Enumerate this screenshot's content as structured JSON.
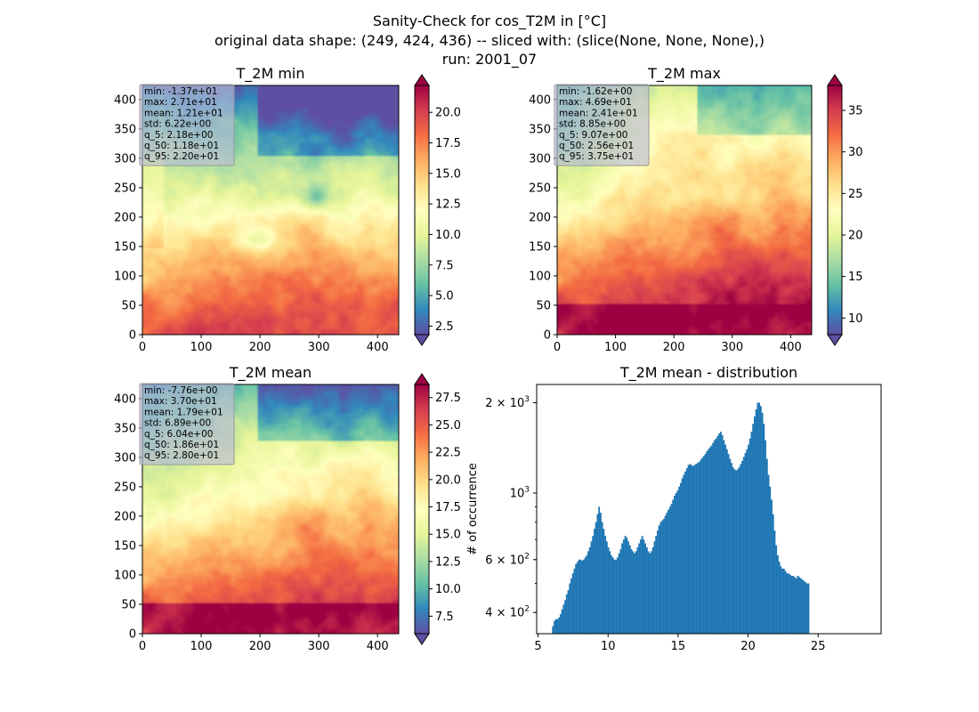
{
  "figure": {
    "suptitle_lines": [
      "Sanity-Check for cos_T2M in [°C]",
      "original data shape: (249, 424, 436) -- sliced with: (slice(None, None, None),)",
      "run: 2001_07"
    ]
  },
  "chart_data": [
    {
      "type": "heatmap",
      "title": "T_2M min",
      "x_ticks": [
        0,
        100,
        200,
        300,
        400
      ],
      "y_ticks": [
        0,
        50,
        100,
        150,
        200,
        250,
        300,
        350,
        400
      ],
      "xlim": [
        0,
        436
      ],
      "ylim": [
        0,
        424
      ],
      "colormap": "Spectral_r",
      "colorbar": {
        "ticks": [
          "2.5",
          "5.0",
          "7.5",
          "10.0",
          "12.5",
          "15.0",
          "17.5",
          "20.0"
        ],
        "range": [
          1.8,
          22.2
        ],
        "extend": "both"
      },
      "stats": [
        "min: -1.37e+01",
        "max: 2.71e+01",
        "mean: 1.21e+01",
        "std: 6.22e+00",
        "q_5: 2.18e+00",
        "q_50: 1.18e+01",
        "q_95: 2.20e+01"
      ]
    },
    {
      "type": "heatmap",
      "title": "T_2M max",
      "x_ticks": [
        0,
        100,
        200,
        300,
        400
      ],
      "y_ticks": [
        0,
        50,
        100,
        150,
        200,
        250,
        300,
        350,
        400
      ],
      "xlim": [
        0,
        436
      ],
      "ylim": [
        0,
        424
      ],
      "colormap": "Spectral_r",
      "colorbar": {
        "ticks": [
          "10",
          "15",
          "20",
          "25",
          "30",
          "35"
        ],
        "range": [
          8,
          38
        ],
        "extend": "both"
      },
      "stats": [
        "min: -1.62e+00",
        "max: 4.69e+01",
        "mean: 2.41e+01",
        "std: 8.85e+00",
        "q_5: 9.07e+00",
        "q_50: 2.56e+01",
        "q_95: 3.75e+01"
      ]
    },
    {
      "type": "heatmap",
      "title": "T_2M mean",
      "x_ticks": [
        0,
        100,
        200,
        300,
        400
      ],
      "y_ticks": [
        0,
        50,
        100,
        150,
        200,
        250,
        300,
        350,
        400
      ],
      "xlim": [
        0,
        436
      ],
      "ylim": [
        0,
        424
      ],
      "colormap": "Spectral_r",
      "colorbar": {
        "ticks": [
          "7.5",
          "10.0",
          "12.5",
          "15.0",
          "17.5",
          "20.0",
          "22.5",
          "25.0",
          "27.5"
        ],
        "range": [
          5.9,
          28.7
        ],
        "extend": "both"
      },
      "stats": [
        "min: -7.76e+00",
        "max: 3.70e+01",
        "mean: 1.79e+01",
        "std: 6.89e+00",
        "q_5: 6.04e+00",
        "q_50: 1.86e+01",
        "q_95: 2.80e+01"
      ]
    },
    {
      "type": "bar",
      "title": "T_2M mean - distribution",
      "ylabel": "# of occurrence",
      "xlim": [
        4.9,
        29.5
      ],
      "ylim": [
        340,
        2300
      ],
      "yscale": "log",
      "x_ticks": [
        5,
        10,
        15,
        20,
        25
      ],
      "y_ticks": [
        {
          "value": 400,
          "label": "4 × 10",
          "exp": "2"
        },
        {
          "value": 600,
          "label": "6 × 10",
          "exp": "2"
        },
        {
          "value": 1000,
          "label": "10",
          "exp": "3"
        },
        {
          "value": 2000,
          "label": "2 × 10",
          "exp": "3"
        }
      ],
      "bar_color": "#1f77b4",
      "bins": {
        "start": 6.0,
        "width": 0.11
      },
      "values": [
        360,
        375,
        380,
        380,
        385,
        395,
        410,
        425,
        440,
        460,
        475,
        500,
        520,
        540,
        560,
        580,
        590,
        600,
        600,
        595,
        600,
        610,
        620,
        640,
        660,
        690,
        720,
        760,
        800,
        850,
        900,
        860,
        800,
        760,
        720,
        690,
        660,
        640,
        620,
        610,
        600,
        600,
        610,
        630,
        650,
        680,
        700,
        720,
        710,
        690,
        670,
        650,
        640,
        630,
        640,
        660,
        680,
        700,
        720,
        700,
        680,
        660,
        640,
        630,
        640,
        660,
        690,
        720,
        750,
        780,
        800,
        810,
        820,
        840,
        860,
        880,
        900,
        920,
        950,
        980,
        1000,
        1020,
        1050,
        1080,
        1120,
        1150,
        1180,
        1210,
        1240,
        1250,
        1240,
        1230,
        1240,
        1250,
        1260,
        1270,
        1290,
        1310,
        1330,
        1350,
        1380,
        1400,
        1420,
        1440,
        1470,
        1500,
        1520,
        1550,
        1580,
        1600,
        1560,
        1500,
        1450,
        1400,
        1350,
        1300,
        1260,
        1220,
        1200,
        1190,
        1200,
        1220,
        1250,
        1280,
        1320,
        1360,
        1400,
        1450,
        1520,
        1600,
        1700,
        1800,
        1900,
        2000,
        2000,
        1950,
        1850,
        1700,
        1500,
        1300,
        1150,
        1050,
        950,
        850,
        750,
        670,
        620,
        590,
        570,
        560,
        560,
        550,
        540,
        540,
        535,
        530,
        530,
        525,
        520,
        530,
        525,
        520,
        515,
        510,
        505,
        500,
        500
      ]
    }
  ]
}
